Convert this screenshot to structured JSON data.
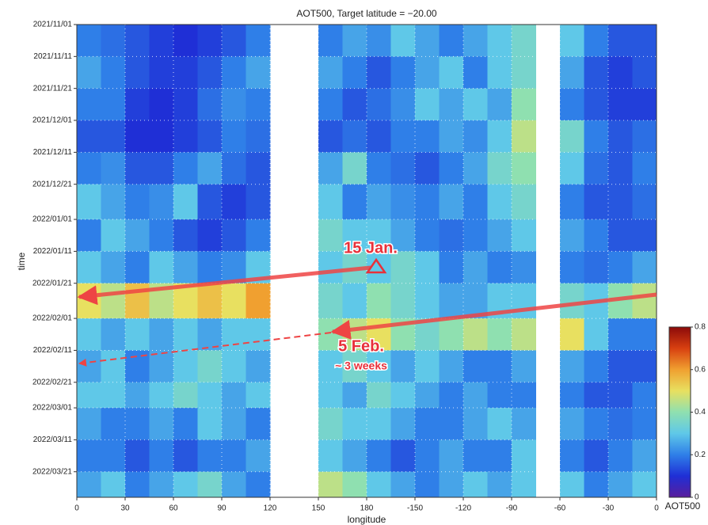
{
  "chart_data": {
    "type": "heatmap",
    "title": "AOT500, Target latitude = −20.00",
    "x_label": "longitude",
    "y_label": "time",
    "colorbar_label": "AOT500",
    "x": [
      7.5,
      22.5,
      37.5,
      52.5,
      67.5,
      82.5,
      97.5,
      112.5,
      127.5,
      142.5,
      157.5,
      172.5,
      187.5,
      202.5,
      217.5,
      232.5,
      247.5,
      262.5,
      277.5,
      292.5,
      307.5,
      322.5,
      337.5,
      352.5
    ],
    "y": [
      "2021/11/01",
      "2021/11/11",
      "2021/11/21",
      "2021/12/01",
      "2021/12/11",
      "2021/12/21",
      "2022/01/01",
      "2022/01/11",
      "2022/01/21",
      "2022/02/01",
      "2022/02/11",
      "2022/02/21",
      "2022/03/01",
      "2022/03/11",
      "2022/03/21"
    ],
    "z": [
      [
        0.2,
        0.18,
        0.15,
        0.12,
        0.1,
        0.12,
        0.15,
        0.2,
        null,
        null,
        0.2,
        0.25,
        0.22,
        0.3,
        0.25,
        0.2,
        0.25,
        0.3,
        0.35,
        null,
        0.3,
        0.2,
        0.15,
        0.15
      ],
      [
        0.25,
        0.2,
        0.15,
        0.12,
        0.12,
        0.15,
        0.2,
        0.25,
        null,
        null,
        0.25,
        0.2,
        0.15,
        0.2,
        0.25,
        0.3,
        0.2,
        0.3,
        0.35,
        null,
        0.25,
        0.15,
        0.12,
        0.15
      ],
      [
        0.2,
        0.2,
        0.12,
        0.1,
        0.12,
        0.18,
        0.22,
        0.2,
        null,
        null,
        0.2,
        0.15,
        0.18,
        0.22,
        0.3,
        0.25,
        0.3,
        0.25,
        0.4,
        null,
        0.2,
        0.15,
        0.12,
        0.12
      ],
      [
        0.15,
        0.15,
        0.1,
        0.1,
        0.12,
        0.15,
        0.2,
        0.18,
        null,
        null,
        0.15,
        0.18,
        0.15,
        0.2,
        0.2,
        0.25,
        0.22,
        0.3,
        0.45,
        null,
        0.35,
        0.2,
        0.15,
        0.18
      ],
      [
        0.2,
        0.22,
        0.15,
        0.15,
        0.2,
        0.25,
        0.18,
        0.15,
        null,
        null,
        0.25,
        0.35,
        0.2,
        0.18,
        0.15,
        0.2,
        0.25,
        0.35,
        0.4,
        null,
        0.3,
        0.18,
        0.15,
        0.2
      ],
      [
        0.3,
        0.25,
        0.2,
        0.22,
        0.3,
        0.15,
        0.12,
        0.15,
        null,
        null,
        0.3,
        0.2,
        0.25,
        0.22,
        0.2,
        0.25,
        0.2,
        0.3,
        0.35,
        null,
        0.2,
        0.15,
        0.15,
        0.18
      ],
      [
        0.2,
        0.3,
        0.25,
        0.2,
        0.15,
        0.12,
        0.15,
        0.2,
        null,
        null,
        0.35,
        0.3,
        0.3,
        0.25,
        0.2,
        0.18,
        0.2,
        0.25,
        0.3,
        null,
        0.25,
        0.2,
        0.15,
        0.15
      ],
      [
        0.3,
        0.25,
        0.2,
        0.3,
        0.25,
        0.2,
        0.22,
        0.3,
        null,
        null,
        0.3,
        0.35,
        0.3,
        0.35,
        0.3,
        0.2,
        0.25,
        0.2,
        0.22,
        null,
        0.2,
        0.18,
        0.2,
        0.25
      ],
      [
        0.5,
        0.45,
        0.55,
        0.45,
        0.5,
        0.55,
        0.5,
        0.6,
        null,
        null,
        0.35,
        0.3,
        0.4,
        0.35,
        0.3,
        0.25,
        0.25,
        0.3,
        0.3,
        null,
        0.35,
        0.3,
        0.4,
        0.45
      ],
      [
        0.3,
        0.25,
        0.3,
        0.25,
        0.3,
        0.25,
        0.3,
        0.3,
        null,
        null,
        0.4,
        0.45,
        0.5,
        0.4,
        0.35,
        0.4,
        0.45,
        0.4,
        0.45,
        null,
        0.5,
        0.3,
        0.2,
        0.2
      ],
      [
        0.25,
        0.3,
        0.2,
        0.25,
        0.3,
        0.35,
        0.3,
        0.25,
        null,
        null,
        0.3,
        0.35,
        0.3,
        0.25,
        0.3,
        0.25,
        0.2,
        0.2,
        0.25,
        null,
        0.25,
        0.2,
        0.15,
        0.15
      ],
      [
        0.3,
        0.3,
        0.25,
        0.3,
        0.35,
        0.3,
        0.25,
        0.3,
        null,
        null,
        0.3,
        0.25,
        0.35,
        0.3,
        0.25,
        0.2,
        0.25,
        0.2,
        0.2,
        null,
        0.2,
        0.15,
        0.15,
        0.2
      ],
      [
        0.25,
        0.2,
        0.2,
        0.25,
        0.2,
        0.3,
        0.25,
        0.2,
        null,
        null,
        0.35,
        0.3,
        0.3,
        0.25,
        0.2,
        0.2,
        0.25,
        0.3,
        0.25,
        null,
        0.25,
        0.2,
        0.18,
        0.2
      ],
      [
        0.2,
        0.2,
        0.15,
        0.2,
        0.15,
        0.2,
        0.2,
        0.25,
        null,
        null,
        0.3,
        0.25,
        0.2,
        0.15,
        0.2,
        0.25,
        0.2,
        0.2,
        0.3,
        null,
        0.2,
        0.15,
        0.2,
        0.25
      ],
      [
        0.25,
        0.3,
        0.2,
        0.25,
        0.3,
        0.35,
        0.25,
        0.2,
        null,
        null,
        0.45,
        0.4,
        0.3,
        0.25,
        0.2,
        0.25,
        0.3,
        0.25,
        0.3,
        null,
        0.3,
        0.2,
        0.25,
        0.3
      ]
    ],
    "xlim": [
      0,
      360
    ],
    "xticks": [
      0,
      30,
      60,
      90,
      120,
      150,
      180,
      {
        "value": 210,
        "label": "-150"
      },
      {
        "value": 240,
        "label": "-120"
      },
      {
        "value": 270,
        "label": "-90"
      },
      {
        "value": 300,
        "label": "-60"
      },
      {
        "value": 330,
        "label": "-30"
      },
      {
        "value": 360,
        "label": "0"
      }
    ],
    "ylim": [
      "2021/11/01",
      "2022/03/29"
    ],
    "yticks": [
      "2021/11/01",
      "2021/11/11",
      "2021/11/21",
      "2021/12/01",
      "2021/12/11",
      "2021/12/21",
      "2022/01/01",
      "2022/01/11",
      "2022/01/21",
      "2022/02/01",
      "2022/02/11",
      "2022/02/21",
      "2022/03/01",
      "2022/03/11",
      "2022/03/21"
    ],
    "clim": [
      0,
      0.8
    ],
    "cticks": [
      0,
      0.2,
      0.4,
      0.6,
      0.8
    ],
    "colormap": [
      "#5a1e9c",
      "#1f2fd6",
      "#2f7fe8",
      "#5fc8e8",
      "#8fe0b0",
      "#e8e060",
      "#f0a030",
      "#d84010",
      "#8c0a0a"
    ],
    "grid": true,
    "annotations": [
      "15 Jan.",
      "5 Feb.",
      "~ 3 weeks"
    ]
  }
}
